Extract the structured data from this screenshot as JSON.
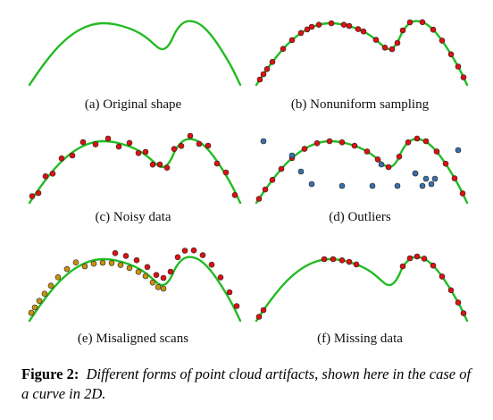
{
  "colors": {
    "curve": "#22bb22",
    "sample_point": "#dd1111",
    "outlier_point": "#3a6fa8",
    "misaligned_point": "#c89010",
    "point_outline": "#222222"
  },
  "panels": [
    {
      "label": "(a) Original shape",
      "variant": "original"
    },
    {
      "label": "(b) Nonuniform sampling",
      "variant": "nonuniform"
    },
    {
      "label": "(c) Noisy data",
      "variant": "noisy"
    },
    {
      "label": "(d) Outliers",
      "variant": "outliers"
    },
    {
      "label": "(e) Misaligned scans",
      "variant": "misaligned"
    },
    {
      "label": "(f) Missing data",
      "variant": "missing"
    }
  ],
  "caption": {
    "prefix": "Figure 2:",
    "text": "Different forms of point cloud artifacts, shown here in the case of a curve in 2D."
  }
}
